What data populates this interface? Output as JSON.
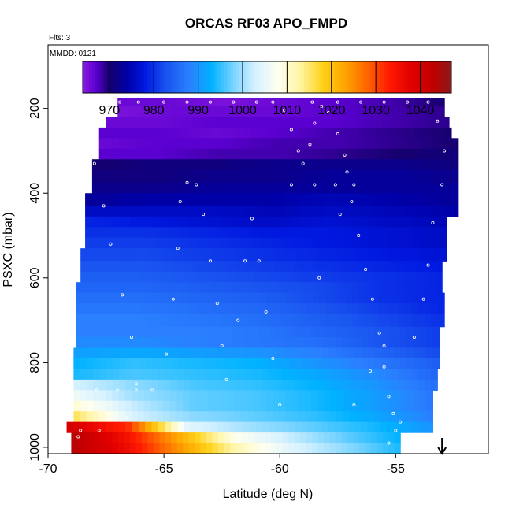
{
  "chart_data": {
    "type": "heatmap",
    "title": "ORCAS RF03 APO_FMPD",
    "annotations": {
      "flights": "Flts: 3",
      "date": "MMDD: 0121"
    },
    "xlabel": "Latitude (deg N)",
    "ylabel": "PSXC (mbar)",
    "xlim": [
      -70,
      -51
    ],
    "ylim": [
      1015,
      50
    ],
    "x_ticks": [
      -70,
      -65,
      -60,
      -55
    ],
    "x_tick_labels": [
      "-70",
      "-65",
      "-60",
      "-55"
    ],
    "y_ticks": [
      200,
      400,
      600,
      800,
      1000
    ],
    "y_tick_labels": [
      "200",
      "400",
      "600",
      "800",
      "1000"
    ],
    "colorbar": {
      "range": [
        964,
        1047
      ],
      "ticks": [
        970,
        980,
        990,
        1000,
        1010,
        1020,
        1030,
        1040
      ],
      "tick_labels": [
        "970",
        "980",
        "990",
        "1000",
        "1010",
        "1020",
        "1030",
        "1040"
      ],
      "colors": [
        [
          964,
          "#8b1be0"
        ],
        [
          967,
          "#5a00d0"
        ],
        [
          970,
          "#16006e"
        ],
        [
          974,
          "#0000a8"
        ],
        [
          978,
          "#0018e0"
        ],
        [
          983,
          "#1a55f0"
        ],
        [
          988,
          "#2a80ff"
        ],
        [
          993,
          "#00b2ff"
        ],
        [
          998,
          "#7ad4ff"
        ],
        [
          1003,
          "#d8f2ff"
        ],
        [
          1008,
          "#fffff0"
        ],
        [
          1013,
          "#fff4a0"
        ],
        [
          1018,
          "#ffd21a"
        ],
        [
          1023,
          "#ffa500"
        ],
        [
          1028,
          "#ff6600"
        ],
        [
          1033,
          "#ff1a00"
        ],
        [
          1038,
          "#e00000"
        ],
        [
          1043,
          "#c00000"
        ],
        [
          1047,
          "#8a1a1a"
        ]
      ]
    },
    "pressure_layers": [
      {
        "p": [
          175,
          195
        ],
        "lat": [
          -67.0,
          -52.9
        ],
        "v": [
          966,
          966,
          965,
          966,
          967,
          968,
          970
        ]
      },
      {
        "p": [
          195,
          220
        ],
        "lat": [
          -67.0,
          -52.9
        ],
        "v": [
          965,
          966,
          966,
          966,
          967,
          968,
          969
        ]
      },
      {
        "p": [
          220,
          245
        ],
        "lat": [
          -67.5,
          -52.7
        ],
        "v": [
          966,
          966,
          967,
          967,
          967,
          968,
          969
        ]
      },
      {
        "p": [
          245,
          270
        ],
        "lat": [
          -67.8,
          -52.6
        ],
        "v": [
          967,
          967,
          966,
          967,
          968,
          969,
          970
        ]
      },
      {
        "p": [
          270,
          295
        ],
        "lat": [
          -67.8,
          -52.3
        ],
        "v": [
          966,
          967,
          967,
          968,
          968,
          969,
          970
        ]
      },
      {
        "p": [
          295,
          320
        ],
        "lat": [
          -67.8,
          -52.3
        ],
        "v": [
          967,
          967,
          968,
          968,
          969,
          970,
          971
        ]
      },
      {
        "p": [
          320,
          345
        ],
        "lat": [
          -68.1,
          -52.3
        ],
        "v": [
          970,
          971,
          971,
          972,
          972,
          972,
          971
        ]
      },
      {
        "p": [
          345,
          375
        ],
        "lat": [
          -68.1,
          -52.3
        ],
        "v": [
          971,
          971,
          972,
          972,
          973,
          973,
          972
        ]
      },
      {
        "p": [
          375,
          400
        ],
        "lat": [
          -68.1,
          -52.3
        ],
        "v": [
          972,
          972,
          973,
          973,
          973,
          973,
          973
        ]
      },
      {
        "p": [
          400,
          430
        ],
        "lat": [
          -68.4,
          -52.3
        ],
        "v": [
          973,
          974,
          974,
          974,
          975,
          974,
          973
        ]
      },
      {
        "p": [
          430,
          455
        ],
        "lat": [
          -68.4,
          -52.3
        ],
        "v": [
          976,
          976,
          976,
          975,
          976,
          975,
          974
        ]
      },
      {
        "p": [
          455,
          480
        ],
        "lat": [
          -68.4,
          -52.8
        ],
        "v": [
          979,
          978,
          977,
          976,
          977,
          976,
          975
        ]
      },
      {
        "p": [
          480,
          505
        ],
        "lat": [
          -68.4,
          -52.8
        ],
        "v": [
          980,
          980,
          979,
          978,
          978,
          977,
          976
        ]
      },
      {
        "p": [
          505,
          530
        ],
        "lat": [
          -68.4,
          -52.8
        ],
        "v": [
          981,
          981,
          980,
          979,
          978,
          977,
          976
        ]
      },
      {
        "p": [
          530,
          560
        ],
        "lat": [
          -68.6,
          -52.8
        ],
        "v": [
          982,
          982,
          981,
          980,
          979,
          978,
          977
        ]
      },
      {
        "p": [
          560,
          585
        ],
        "lat": [
          -68.6,
          -53.0
        ],
        "v": [
          983,
          983,
          982,
          981,
          980,
          979,
          978
        ]
      },
      {
        "p": [
          585,
          610
        ],
        "lat": [
          -68.6,
          -53.0
        ],
        "v": [
          984,
          984,
          983,
          982,
          981,
          980,
          979
        ]
      },
      {
        "p": [
          610,
          635
        ],
        "lat": [
          -68.8,
          -53.0
        ],
        "v": [
          985,
          985,
          984,
          983,
          982,
          980,
          979
        ]
      },
      {
        "p": [
          635,
          660
        ],
        "lat": [
          -68.8,
          -52.9
        ],
        "v": [
          986,
          986,
          985,
          984,
          982,
          980,
          979
        ]
      },
      {
        "p": [
          660,
          685
        ],
        "lat": [
          -68.8,
          -52.9
        ],
        "v": [
          987,
          987,
          986,
          985,
          983,
          981,
          979
        ]
      },
      {
        "p": [
          685,
          715
        ],
        "lat": [
          -68.8,
          -52.9
        ],
        "v": [
          988,
          988,
          987,
          986,
          984,
          982,
          980
        ]
      },
      {
        "p": [
          715,
          740
        ],
        "lat": [
          -68.8,
          -53.1
        ],
        "v": [
          988,
          988,
          988,
          987,
          985,
          983,
          981
        ]
      },
      {
        "p": [
          740,
          765
        ],
        "lat": [
          -68.8,
          -53.1
        ],
        "v": [
          989,
          989,
          988,
          987,
          986,
          983,
          981
        ]
      },
      {
        "p": [
          765,
          790
        ],
        "lat": [
          -68.9,
          -53.1
        ],
        "v": [
          991,
          992,
          991,
          990,
          988,
          985,
          982
        ]
      },
      {
        "p": [
          790,
          815
        ],
        "lat": [
          -68.9,
          -53.1
        ],
        "v": [
          993,
          995,
          994,
          993,
          990,
          987,
          984
        ]
      },
      {
        "p": [
          815,
          840
        ],
        "lat": [
          -68.9,
          -53.2
        ],
        "v": [
          994,
          996,
          995,
          994,
          992,
          989,
          985
        ]
      },
      {
        "p": [
          840,
          865
        ],
        "lat": [
          -68.9,
          -53.2
        ],
        "v": [
          1003,
          999,
          996,
          995,
          993,
          990,
          986
        ]
      },
      {
        "p": [
          865,
          890
        ],
        "lat": [
          -68.9,
          -53.4
        ],
        "v": [
          1006,
          1000,
          997,
          996,
          994,
          991,
          987
        ]
      },
      {
        "p": [
          890,
          915
        ],
        "lat": [
          -68.9,
          -53.4
        ],
        "v": [
          1010,
          1002,
          997,
          996,
          994,
          991,
          987
        ]
      },
      {
        "p": [
          915,
          940
        ],
        "lat": [
          -68.9,
          -53.4
        ],
        "v": [
          1016,
          1003,
          999,
          997,
          995,
          992,
          988
        ]
      },
      {
        "p": [
          940,
          965
        ],
        "lat": [
          -69.2,
          -53.4
        ],
        "v": [
          1040,
          1032,
          1004,
          1000,
          997,
          994,
          990
        ]
      },
      {
        "p": [
          965,
          990
        ],
        "lat": [
          -69.0,
          -54.8
        ],
        "v": [
          1044,
          1035,
          1022,
          1008,
          1002,
          997,
          993
        ]
      },
      {
        "p": [
          990,
          1015
        ],
        "lat": [
          -69.0,
          -54.8
        ],
        "v": [
          1044,
          1036,
          1024,
          1012,
          1004,
          999,
          994
        ]
      }
    ],
    "flight_track": [
      [
        -66.9,
        185
      ],
      [
        -66.1,
        185
      ],
      [
        -65.0,
        185
      ],
      [
        -64.0,
        185
      ],
      [
        -63.0,
        185
      ],
      [
        -62.0,
        185
      ],
      [
        -61.0,
        185
      ],
      [
        -60.3,
        185
      ],
      [
        -59.8,
        205
      ],
      [
        -59.5,
        250
      ],
      [
        -59.2,
        300
      ],
      [
        -59.0,
        330
      ],
      [
        -58.7,
        285
      ],
      [
        -58.5,
        235
      ],
      [
        -58.2,
        195
      ],
      [
        -57.9,
        210
      ],
      [
        -57.5,
        260
      ],
      [
        -57.2,
        310
      ],
      [
        -57.1,
        350
      ],
      [
        -56.9,
        420
      ],
      [
        -56.6,
        500
      ],
      [
        -56.3,
        580
      ],
      [
        -56.0,
        650
      ],
      [
        -55.7,
        730
      ],
      [
        -55.5,
        810
      ],
      [
        -55.3,
        880
      ],
      [
        -55.1,
        920
      ],
      [
        -54.8,
        940
      ],
      [
        -55.0,
        960
      ],
      [
        -55.3,
        990
      ],
      [
        -58.6,
        185
      ],
      [
        -57.5,
        185
      ],
      [
        -56.5,
        185
      ],
      [
        -55.5,
        185
      ],
      [
        -54.5,
        185
      ],
      [
        -53.6,
        185
      ],
      [
        -53.2,
        230
      ],
      [
        -52.9,
        300
      ],
      [
        -53.0,
        380
      ],
      [
        -53.4,
        470
      ],
      [
        -53.6,
        570
      ],
      [
        -53.8,
        650
      ],
      [
        -68.2,
        240
      ],
      [
        -68.0,
        330
      ],
      [
        -67.6,
        430
      ],
      [
        -67.3,
        520
      ],
      [
        -66.8,
        640
      ],
      [
        -66.4,
        740
      ],
      [
        -66.2,
        850
      ],
      [
        -66.6,
        930
      ],
      [
        -67.8,
        960
      ],
      [
        -68.7,
        975
      ],
      [
        -64.9,
        780
      ],
      [
        -64.6,
        650
      ],
      [
        -64.4,
        530
      ],
      [
        -64.3,
        420
      ],
      [
        -64.0,
        375
      ],
      [
        -63.6,
        380
      ],
      [
        -63.3,
        450
      ],
      [
        -63.0,
        560
      ],
      [
        -62.7,
        660
      ],
      [
        -62.5,
        760
      ],
      [
        -62.3,
        840
      ],
      [
        -61.8,
        700
      ],
      [
        -61.5,
        560
      ],
      [
        -61.2,
        460
      ],
      [
        -60.9,
        560
      ],
      [
        -60.6,
        680
      ],
      [
        -60.3,
        790
      ],
      [
        -60.0,
        900
      ],
      [
        -59.5,
        380
      ],
      [
        -58.5,
        380
      ],
      [
        -57.6,
        380
      ],
      [
        -56.8,
        380
      ],
      [
        -67.9,
        865
      ],
      [
        -67.0,
        865
      ],
      [
        -66.2,
        865
      ],
      [
        -65.5,
        865
      ],
      [
        -68.6,
        960
      ],
      [
        -56.8,
        900
      ],
      [
        -56.1,
        820
      ],
      [
        -55.5,
        760
      ],
      [
        -57.4,
        450
      ],
      [
        -58.3,
        600
      ],
      [
        -54.2,
        740
      ]
    ],
    "arrow_marker_latitude": -53.0
  }
}
